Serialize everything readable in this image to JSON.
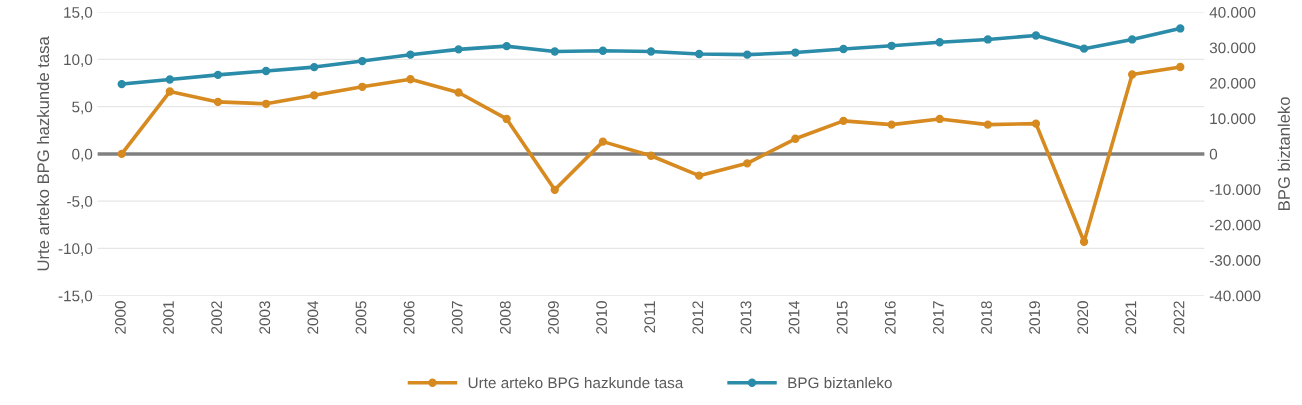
{
  "chart_data": {
    "type": "line",
    "categories": [
      "2000",
      "2001",
      "2002",
      "2003",
      "2004",
      "2005",
      "2006",
      "2007",
      "2008",
      "2009",
      "2010",
      "2011",
      "2012",
      "2013",
      "2014",
      "2015",
      "2016",
      "2017",
      "2018",
      "2019",
      "2020",
      "2021",
      "2022"
    ],
    "series": [
      {
        "name": "Urte arteko BPG hazkunde tasa",
        "color": "#d68a1f",
        "values": [
          0.0,
          6.6,
          5.5,
          5.3,
          6.2,
          7.1,
          7.9,
          6.5,
          3.7,
          -3.8,
          1.3,
          -0.2,
          -2.3,
          -1.0,
          1.6,
          3.5,
          3.1,
          3.7,
          3.1,
          3.2,
          -9.3,
          8.4,
          9.2
        ]
      },
      {
        "name": "BPG biztanleko",
        "color": "#2a8ca8",
        "axis": "y2",
        "values": [
          19700,
          21000,
          22300,
          23400,
          24500,
          26200,
          28000,
          29500,
          30400,
          28900,
          29100,
          28900,
          28200,
          28000,
          28600,
          29600,
          30500,
          31500,
          32300,
          33400,
          29700,
          32300,
          35400
        ]
      }
    ],
    "ylabel": "Urte arteko BPG hazkunde tasa",
    "y2label": "BPG biztanleko",
    "ylim": [
      -15,
      15
    ],
    "yticks": [
      {
        "value": -15,
        "label": "-15,0"
      },
      {
        "value": -10,
        "label": "-10,0"
      },
      {
        "value": -5,
        "label": "-5,0"
      },
      {
        "value": 0,
        "label": "0,0"
      },
      {
        "value": 5,
        "label": "5,0"
      },
      {
        "value": 10,
        "label": "10,0"
      },
      {
        "value": 15,
        "label": "15,0"
      }
    ],
    "y2lim": [
      -40000,
      40000
    ],
    "y2ticks": [
      {
        "value": -40000,
        "label": "-40.000"
      },
      {
        "value": -30000,
        "label": "-30.000"
      },
      {
        "value": -20000,
        "label": "-20.000"
      },
      {
        "value": -10000,
        "label": "-10.000"
      },
      0,
      {
        "value": 10000,
        "label": "10.000"
      },
      {
        "value": 20000,
        "label": "20.000"
      },
      {
        "value": 30000,
        "label": "30.000"
      },
      {
        "value": 40000,
        "label": "40.000"
      }
    ],
    "ref_lines": [
      {
        "axis": "y",
        "value": 0,
        "color": "#808080"
      }
    ],
    "grid": "y",
    "legend": "bottom",
    "marker": "circle",
    "line_style": "solid"
  }
}
